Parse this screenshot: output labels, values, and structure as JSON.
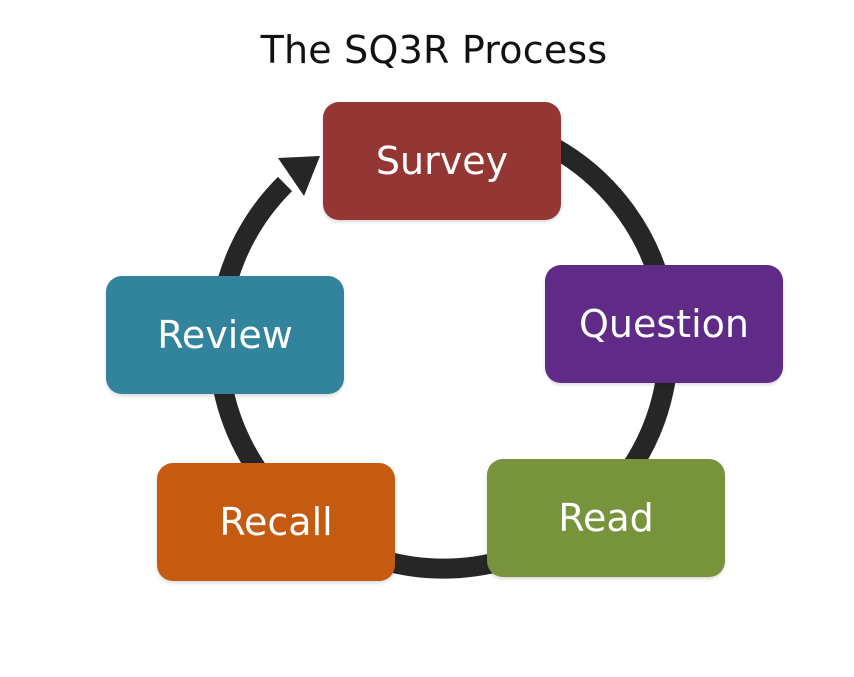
{
  "title": "The SQ3R Process",
  "cycle": {
    "ring_color": "#262626",
    "arrow_icon": "curved-arrow-icon"
  },
  "stages": [
    {
      "label": "Survey",
      "color": "#943634"
    },
    {
      "label": "Question",
      "color": "#5F2B86"
    },
    {
      "label": "Read",
      "color": "#77933C"
    },
    {
      "label": "Recall",
      "color": "#C55A11"
    },
    {
      "label": "Review",
      "color": "#31849B"
    }
  ]
}
